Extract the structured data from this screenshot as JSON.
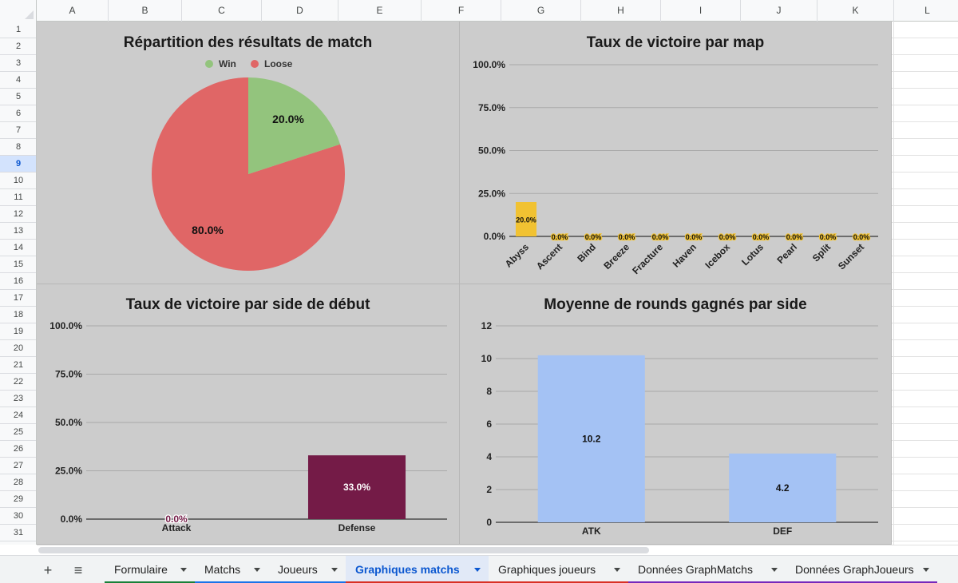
{
  "spreadsheet": {
    "columns": [
      "A",
      "B",
      "C",
      "D",
      "E",
      "F",
      "G",
      "H",
      "I",
      "J",
      "K",
      "L"
    ],
    "rows": [
      "1",
      "2",
      "3",
      "4",
      "5",
      "6",
      "7",
      "8",
      "9",
      "10",
      "11",
      "12",
      "13",
      "14",
      "15",
      "16",
      "17",
      "18",
      "19",
      "20",
      "21",
      "22",
      "23",
      "24",
      "25",
      "26",
      "27",
      "28",
      "29",
      "30",
      "31"
    ],
    "selected_row": "9"
  },
  "charts": {
    "pie": {
      "title": "Répartition des résultats de match",
      "legend": [
        "Win",
        "Loose"
      ],
      "colors": {
        "win": "#93c47d",
        "loose": "#e06666"
      },
      "labels": {
        "win": "20.0%",
        "loose": "80.0%"
      }
    },
    "map": {
      "title": "Taux de victoire par map",
      "ticks": [
        "100.0%",
        "75.0%",
        "50.0%",
        "25.0%",
        "0.0%"
      ],
      "color": "#f1c232"
    },
    "side": {
      "title": "Taux de victoire par side de début",
      "ticks": [
        "100.0%",
        "75.0%",
        "50.0%",
        "25.0%",
        "0.0%"
      ],
      "color": "#741b47"
    },
    "rounds": {
      "title": "Moyenne de rounds gagnés par side",
      "ticks": [
        "12",
        "10",
        "8",
        "6",
        "4",
        "2",
        "0"
      ],
      "color": "#a4c2f4"
    }
  },
  "chart_data": [
    {
      "type": "pie",
      "title": "Répartition des résultats de match",
      "categories": [
        "Win",
        "Loose"
      ],
      "values": [
        20.0,
        80.0
      ],
      "labels": [
        "20.0%",
        "80.0%"
      ],
      "legend": "top"
    },
    {
      "type": "bar",
      "title": "Taux de victoire par map",
      "categories": [
        "Abyss",
        "Ascent",
        "Bind",
        "Breeze",
        "Fracture",
        "Haven",
        "Icebox",
        "Lotus",
        "Pearl",
        "Split",
        "Sunset"
      ],
      "values": [
        20.0,
        0,
        0,
        0,
        0,
        0,
        0,
        0,
        0,
        0,
        0
      ],
      "labels": [
        "20.0%",
        "0.0%",
        "0.0%",
        "0.0%",
        "0.0%",
        "0.0%",
        "0.0%",
        "0.0%",
        "0.0%",
        "0.0%",
        "0.0%"
      ],
      "ylim": [
        0,
        100
      ]
    },
    {
      "type": "bar",
      "title": "Taux de victoire par side de début",
      "categories": [
        "Attack",
        "Defense"
      ],
      "values": [
        0.0,
        33.0
      ],
      "labels": [
        "0.0%",
        "33.0%"
      ],
      "ylim": [
        0,
        100
      ]
    },
    {
      "type": "bar",
      "title": "Moyenne de rounds gagnés par side",
      "categories": [
        "ATK",
        "DEF"
      ],
      "values": [
        10.2,
        4.2
      ],
      "labels": [
        "10.2",
        "4.2"
      ],
      "ylim": [
        0,
        12
      ]
    }
  ],
  "tabs": {
    "add": "+",
    "menu": "≡",
    "items": [
      {
        "label": "Formulaire",
        "color": "#188038",
        "active": false
      },
      {
        "label": "Matchs",
        "color": "#1a73e8",
        "active": false
      },
      {
        "label": "Joueurs",
        "color": "#1a73e8",
        "active": false
      },
      {
        "label": "Graphiques matchs",
        "color": "#d93025",
        "active": true
      },
      {
        "label": "Graphiques joueurs",
        "color": "#d93025",
        "active": false
      },
      {
        "label": "Données GraphMatchs",
        "color": "#7627bb",
        "active": false
      },
      {
        "label": "Données GraphJoueurs",
        "color": "#7627bb",
        "active": false
      }
    ]
  }
}
